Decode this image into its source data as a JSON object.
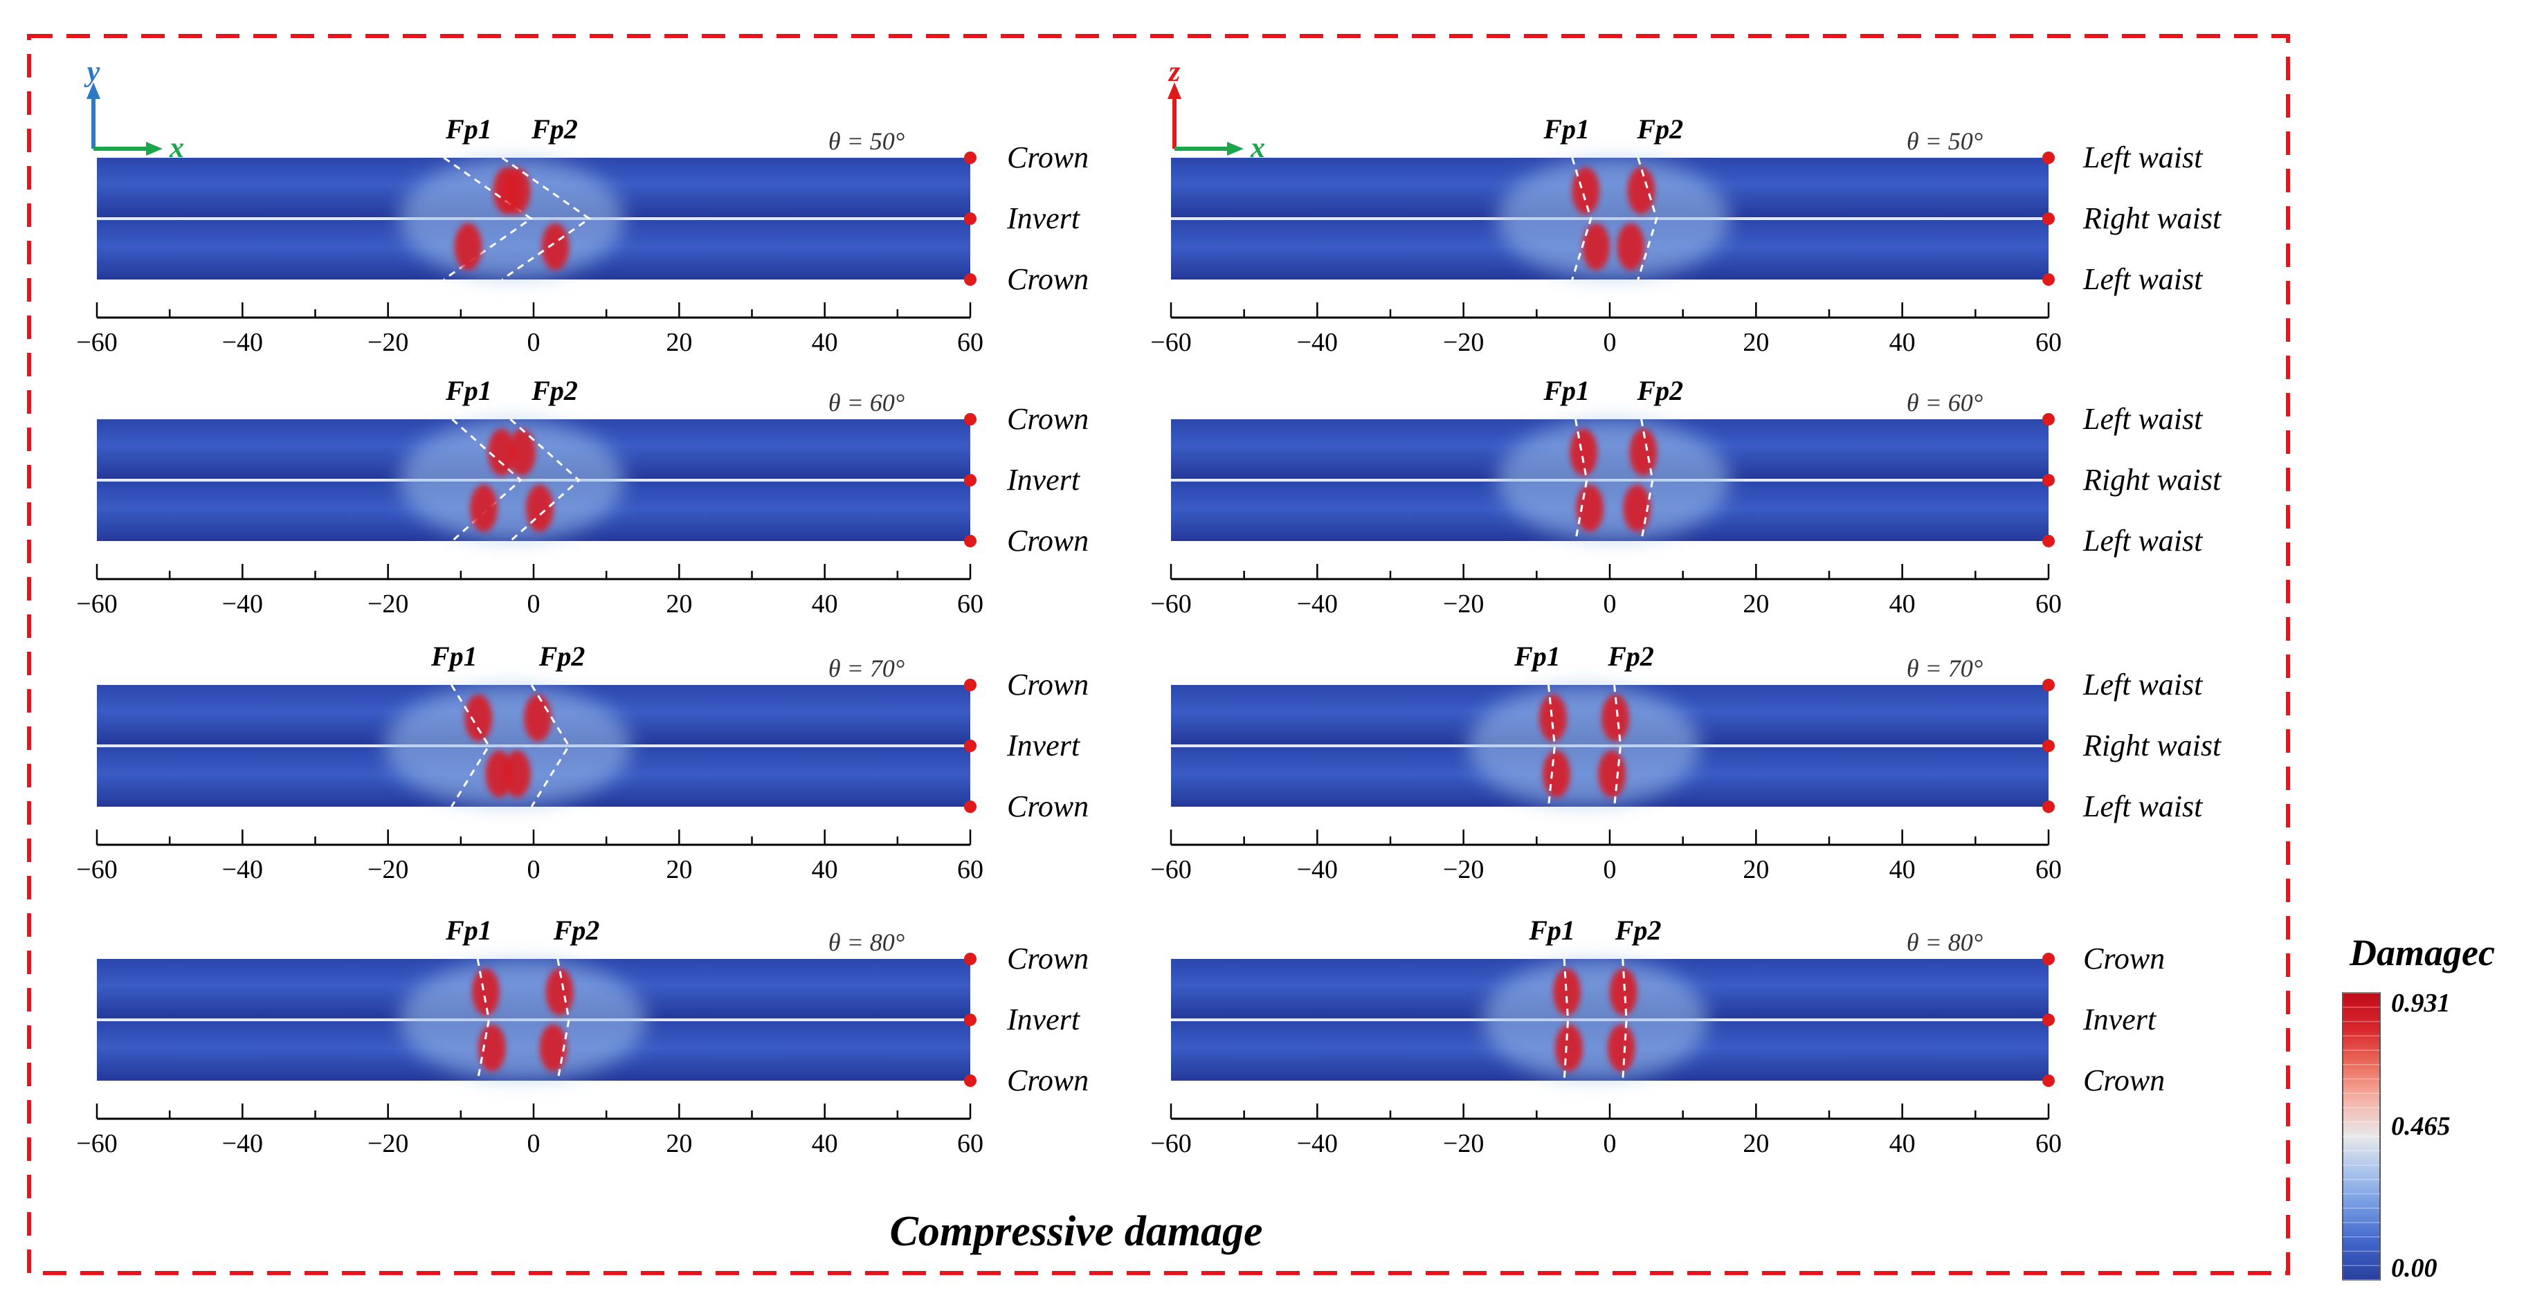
{
  "title": "Compressive damage",
  "colorbar": {
    "label": "Damagec",
    "max": "0.931",
    "mid": "0.465",
    "min": "0.00",
    "stops": [
      "#2a3f9e",
      "#3f63c8",
      "#6f97e0",
      "#a9c3ec",
      "#e8e8ea",
      "#f4b4a8",
      "#ec6e5c",
      "#d8262c",
      "#c00d1a"
    ]
  },
  "colors": {
    "frame": "#e8141c",
    "band_top": "#2f4ab0",
    "band_mid": "#3558c0",
    "band_bottom": "#233a96",
    "damage": "#d81e25",
    "y_axis": "#2e78c8",
    "z_axis": "#e01a1a",
    "x_axis": "#1aa64a"
  },
  "axis_ticks": [
    "−60",
    "−40",
    "−20",
    "0",
    "20",
    "40",
    "60"
  ],
  "axis_range": [
    -60,
    60
  ],
  "fracture_labels": [
    "Fp1",
    "Fp2"
  ],
  "theta_prefix": "θ = ",
  "panel_groups": [
    {
      "axes": {
        "vertical": "y",
        "horizontal": "x"
      },
      "panels": [
        {
          "theta": "50°",
          "labels": [
            "Crown",
            "Invert",
            "Crown"
          ]
        },
        {
          "theta": "60°",
          "labels": [
            "Crown",
            "Invert",
            "Crown"
          ]
        },
        {
          "theta": "70°",
          "labels": [
            "Crown",
            "Invert",
            "Crown"
          ]
        },
        {
          "theta": "80°",
          "labels": [
            "Crown",
            "Invert",
            "Crown"
          ]
        }
      ]
    },
    {
      "axes": {
        "vertical": "z",
        "horizontal": "x"
      },
      "panels": [
        {
          "theta": "50°",
          "labels": [
            "Left waist",
            "Right waist",
            "Left waist"
          ]
        },
        {
          "theta": "60°",
          "labels": [
            "Left waist",
            "Right waist",
            "Left waist"
          ]
        },
        {
          "theta": "70°",
          "labels": [
            "Left waist",
            "Right waist",
            "Left waist"
          ]
        },
        {
          "theta": "80°",
          "labels": [
            "Crown",
            "Invert",
            "Crown"
          ]
        }
      ]
    }
  ]
}
